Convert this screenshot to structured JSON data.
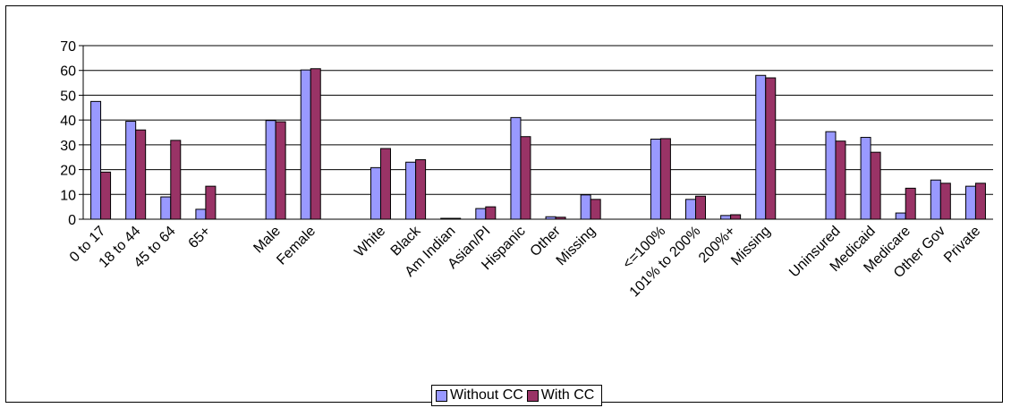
{
  "chart_data": {
    "type": "bar",
    "title": "",
    "xlabel": "",
    "ylabel": "",
    "ylim": [
      0,
      70
    ],
    "yticks": [
      0,
      10,
      20,
      30,
      40,
      50,
      60,
      70
    ],
    "grid": true,
    "legend_position": "bottom",
    "categories": [
      "0 to 17",
      "18 to 44",
      "45 to 64",
      "65+",
      "",
      "Male",
      "Female",
      "",
      "White",
      "Black",
      "Am Indian",
      "Asian/PI",
      "Hispanic",
      "Other",
      "Missing",
      "",
      "<=100%",
      "101% to 200%",
      "200%+",
      "Missing",
      "",
      "Uninsured",
      "Medicaid",
      "Medicare",
      "Other Gov",
      "Private"
    ],
    "series": [
      {
        "name": "Without CC",
        "color": "#9999ff",
        "values": [
          47.5,
          39.5,
          9,
          4,
          null,
          39.8,
          60.2,
          null,
          20.8,
          23,
          0.3,
          4.3,
          41,
          1,
          9.8,
          null,
          32.3,
          8,
          1.5,
          58,
          null,
          35.3,
          33,
          2.5,
          15.8,
          13.3
        ]
      },
      {
        "name": "With CC",
        "color": "#993366",
        "values": [
          19,
          36,
          31.8,
          13.3,
          null,
          39.3,
          60.7,
          null,
          28.5,
          24,
          0.3,
          5,
          33.3,
          0.8,
          8,
          null,
          32.5,
          9.3,
          1.8,
          57,
          null,
          31.5,
          27,
          12.5,
          14.5,
          14.5
        ]
      }
    ]
  }
}
